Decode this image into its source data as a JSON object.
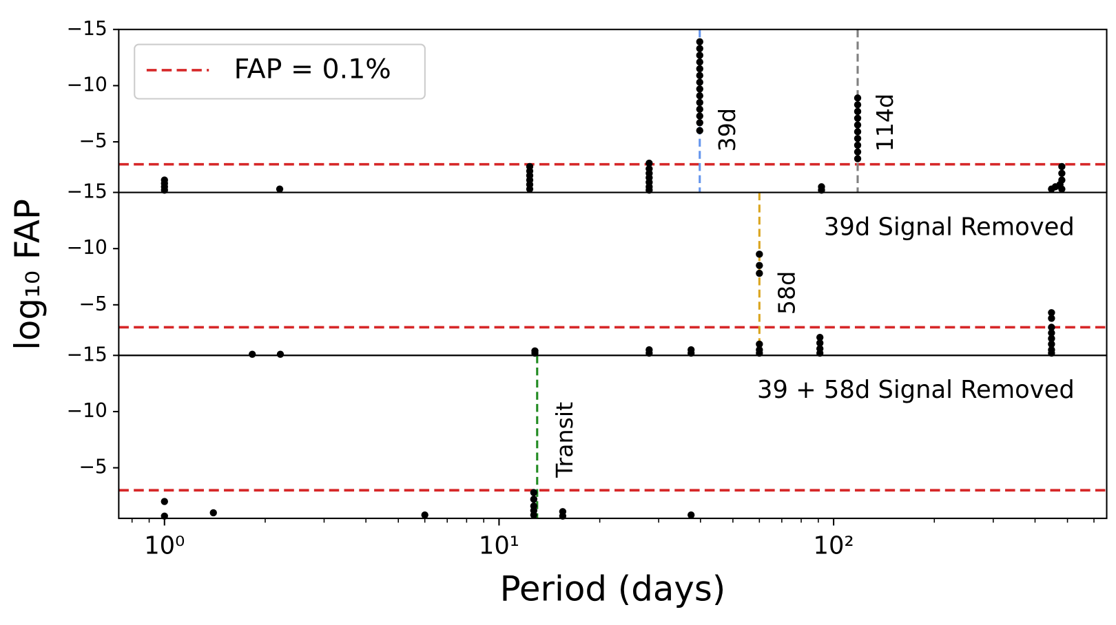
{
  "chart_data": [
    {
      "type": "scatter",
      "xscale": "log",
      "xlim": [
        0.73,
        655
      ],
      "ylim": [
        -15,
        -0.5
      ],
      "invert_y": true,
      "yticks": [
        {
          "value": -15,
          "label": "−15"
        },
        {
          "value": -10,
          "label": "−10"
        },
        {
          "value": -5,
          "label": "−5"
        }
      ],
      "color": "#000000",
      "x": [
        1.0,
        1.0,
        1.0,
        1.0,
        2.21,
        12.35,
        12.35,
        12.35,
        12.35,
        12.35,
        12.35,
        28.1,
        28.1,
        28.1,
        28.1,
        28.1,
        28.1,
        28.1,
        39.8,
        39.8,
        39.8,
        39.8,
        39.8,
        39.8,
        39.8,
        39.8,
        39.8,
        39.8,
        39.8,
        39.8,
        39.8,
        39.8,
        92,
        92,
        118,
        118,
        118,
        118,
        118,
        118,
        118,
        118,
        118,
        118,
        448,
        460,
        475,
        481,
        481,
        481,
        481
      ],
      "values": [
        -1.6,
        -1.3,
        -1.0,
        -0.7,
        -0.8,
        -2.8,
        -2.4,
        -2.0,
        -1.6,
        -1.2,
        -0.8,
        -3.1,
        -2.6,
        -2.2,
        -1.8,
        -1.4,
        -1.0,
        -0.7,
        -13.9,
        -13.3,
        -12.7,
        -12.1,
        -11.5,
        -10.9,
        -10.3,
        -9.7,
        -9.1,
        -8.5,
        -7.9,
        -7.3,
        -6.7,
        -6.0,
        -1.0,
        -0.7,
        -8.9,
        -8.3,
        -7.7,
        -7.1,
        -6.5,
        -5.9,
        -5.3,
        -4.7,
        -4.1,
        -3.5,
        -0.8,
        -1.0,
        -1.2,
        -2.8,
        -2.2,
        -1.6,
        -0.8
      ],
      "hline": {
        "value": -3,
        "name": "FAP = 0.1%",
        "color": "#d62728"
      },
      "vlines": [
        {
          "value": 39.8,
          "label": "39d",
          "color": "#6495ed"
        },
        {
          "value": 118,
          "label": "114d",
          "color": "#808080"
        }
      ]
    },
    {
      "type": "scatter",
      "xscale": "log",
      "xlim": [
        0.73,
        655
      ],
      "ylim": [
        -15,
        -0.5
      ],
      "invert_y": true,
      "yticks": [
        {
          "value": -15,
          "label": "−15"
        },
        {
          "value": -10,
          "label": "−10"
        },
        {
          "value": -5,
          "label": "−5"
        }
      ],
      "color": "#000000",
      "ylabel": "log₁₀ FAP",
      "annotation": "39d Signal Removed",
      "x": [
        1.83,
        2.22,
        12.8,
        12.8,
        28.1,
        28.1,
        37.5,
        37.5,
        60,
        60,
        60,
        60,
        60,
        60,
        91,
        91,
        91,
        91,
        448,
        448,
        448,
        448,
        448,
        448,
        448,
        448
      ],
      "values": [
        -0.6,
        -0.6,
        -0.9,
        -0.7,
        -1.0,
        -0.7,
        -1.0,
        -0.7,
        -9.5,
        -8.5,
        -7.8,
        -1.5,
        -1.0,
        -0.7,
        -2.1,
        -1.6,
        -1.1,
        -0.7,
        -4.3,
        -3.8,
        -3.0,
        -2.5,
        -2.0,
        -1.5,
        -1.0,
        -0.7
      ],
      "hline": {
        "value": -3,
        "color": "#d62728"
      },
      "vlines": [
        {
          "value": 60,
          "label": "58d",
          "color": "#daa520"
        }
      ]
    },
    {
      "type": "scatter",
      "xscale": "log",
      "xlim": [
        0.73,
        655
      ],
      "ylim": [
        -15,
        -0.5
      ],
      "invert_y": true,
      "yticks": [
        {
          "value": -15,
          "label": "−15"
        },
        {
          "value": -10,
          "label": "−10"
        },
        {
          "value": -5,
          "label": "−5"
        }
      ],
      "xticks": [
        {
          "value": 1,
          "label": "10⁰"
        },
        {
          "value": 10,
          "label": "10¹"
        },
        {
          "value": 100,
          "label": "10²"
        }
      ],
      "xminorticks": [
        0.8,
        0.9,
        2,
        3,
        4,
        5,
        6,
        7,
        8,
        9,
        20,
        30,
        40,
        50,
        60,
        70,
        80,
        90,
        200,
        300,
        400,
        500,
        600
      ],
      "xlabel": "Period (days)",
      "color": "#000000",
      "annotation": "39 + 58d Signal Removed",
      "x": [
        1.0,
        1.0,
        1.4,
        6.0,
        12.7,
        12.7,
        12.7,
        12.7,
        12.7,
        15.5,
        15.5,
        37.5
      ],
      "values": [
        -2.0,
        -0.7,
        -1.0,
        -0.8,
        -2.8,
        -2.2,
        -1.6,
        -1.2,
        -0.8,
        -1.1,
        -0.7,
        -0.8
      ],
      "hline": {
        "value": -3,
        "color": "#d62728"
      },
      "vlines": [
        {
          "value": 13.0,
          "label": "Transit",
          "color": "#228b22"
        }
      ]
    }
  ]
}
